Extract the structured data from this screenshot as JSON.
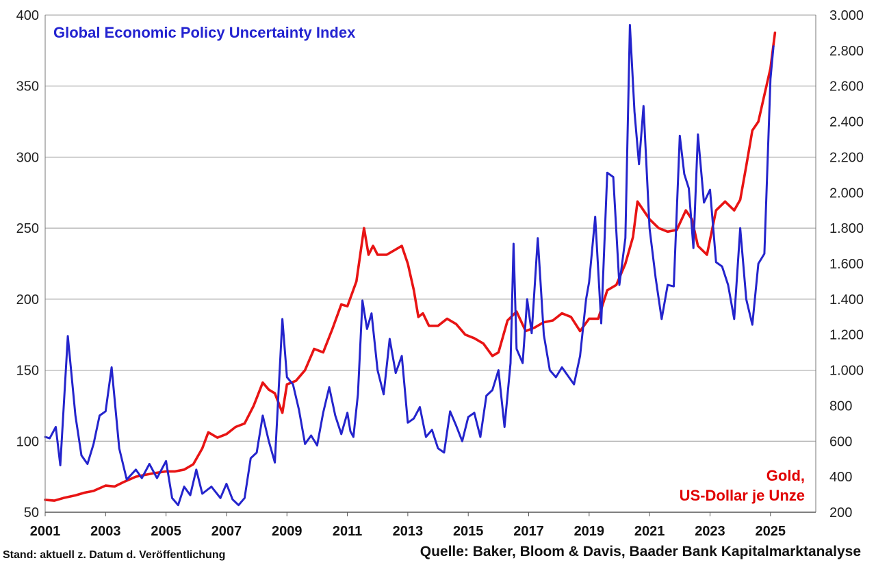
{
  "chart_data": {
    "type": "line",
    "title": "Global Economic Policy Uncertainty Index",
    "right_axis_label": "Gold,",
    "right_axis_label_2": "US-Dollar je Unze",
    "footer_left": "Stand: aktuell z. Datum d. Veröffentlichung",
    "footer_right": "Quelle: Baker, Bloom & Davis, Baader Bank Kapitalmarktanalyse",
    "x_ticks": [
      "2001",
      "2003",
      "2005",
      "2007",
      "2009",
      "2011",
      "2013",
      "2015",
      "2017",
      "2019",
      "2021",
      "2023",
      "2025"
    ],
    "xlim": [
      2001,
      2026.5
    ],
    "y_left": {
      "ticks": [
        "50",
        "100",
        "150",
        "200",
        "250",
        "300",
        "350",
        "400"
      ],
      "lim": [
        50,
        400
      ]
    },
    "y_right": {
      "ticks": [
        "200",
        "400",
        "600",
        "800",
        "1.000",
        "1.200",
        "1.400",
        "1.600",
        "1.800",
        "2.000",
        "2.200",
        "2.400",
        "2.600",
        "2.800",
        "3.000"
      ],
      "lim": [
        200,
        3000
      ]
    },
    "grid": true,
    "colors": {
      "epu": "#2424cc",
      "gold": "#e81414",
      "grid": "#9a9a9a"
    },
    "series": [
      {
        "name": "Global Economic Policy Uncertainty Index",
        "axis": "left",
        "x": [
          2001.0,
          2001.15,
          2001.35,
          2001.5,
          2001.75,
          2002.0,
          2002.2,
          2002.4,
          2002.6,
          2002.8,
          2003.0,
          2003.2,
          2003.45,
          2003.7,
          2004.0,
          2004.2,
          2004.45,
          2004.7,
          2005.0,
          2005.2,
          2005.4,
          2005.6,
          2005.8,
          2006.0,
          2006.2,
          2006.5,
          2006.8,
          2007.0,
          2007.2,
          2007.4,
          2007.6,
          2007.8,
          2008.0,
          2008.2,
          2008.4,
          2008.6,
          2008.85,
          2009.0,
          2009.2,
          2009.4,
          2009.6,
          2009.8,
          2010.0,
          2010.2,
          2010.4,
          2010.6,
          2010.8,
          2011.0,
          2011.1,
          2011.2,
          2011.35,
          2011.5,
          2011.65,
          2011.8,
          2012.0,
          2012.2,
          2012.4,
          2012.6,
          2012.8,
          2013.0,
          2013.2,
          2013.4,
          2013.6,
          2013.8,
          2014.0,
          2014.2,
          2014.4,
          2014.6,
          2014.8,
          2015.0,
          2015.2,
          2015.4,
          2015.6,
          2015.8,
          2016.0,
          2016.2,
          2016.4,
          2016.5,
          2016.6,
          2016.8,
          2016.95,
          2017.1,
          2017.3,
          2017.5,
          2017.7,
          2017.9,
          2018.1,
          2018.3,
          2018.5,
          2018.7,
          2018.9,
          2019.0,
          2019.2,
          2019.4,
          2019.6,
          2019.8,
          2020.0,
          2020.2,
          2020.35,
          2020.5,
          2020.65,
          2020.8,
          2021.0,
          2021.2,
          2021.4,
          2021.6,
          2021.8,
          2022.0,
          2022.15,
          2022.3,
          2022.45,
          2022.6,
          2022.8,
          2023.0,
          2023.2,
          2023.4,
          2023.6,
          2023.8,
          2024.0,
          2024.2,
          2024.4,
          2024.6,
          2024.8,
          2025.0,
          2025.1
        ],
        "values": [
          103,
          102,
          110,
          83,
          174,
          118,
          90,
          84,
          98,
          118,
          121,
          152,
          95,
          73,
          80,
          74,
          84,
          74,
          86,
          60,
          55,
          68,
          62,
          80,
          63,
          68,
          60,
          70,
          59,
          55,
          60,
          88,
          92,
          118,
          100,
          85,
          186,
          145,
          140,
          122,
          98,
          104,
          97,
          120,
          138,
          118,
          105,
          120,
          107,
          103,
          133,
          199,
          179,
          190,
          150,
          133,
          172,
          148,
          160,
          113,
          116,
          124,
          103,
          108,
          95,
          92,
          121,
          111,
          100,
          117,
          120,
          103,
          132,
          136,
          150,
          110,
          155,
          239,
          165,
          155,
          200,
          176,
          243,
          175,
          150,
          145,
          152,
          146,
          140,
          160,
          200,
          212,
          258,
          183,
          289,
          286,
          210,
          243,
          393,
          332,
          295,
          336,
          250,
          215,
          186,
          210,
          209,
          315,
          288,
          278,
          236,
          316,
          268,
          277,
          226,
          223,
          210,
          186,
          250,
          200,
          182,
          225,
          232,
          355,
          378
        ]
      },
      {
        "name": "Gold, US-Dollar je Unze",
        "axis": "right",
        "x": [
          2001.0,
          2001.3,
          2001.6,
          2002.0,
          2002.3,
          2002.6,
          2003.0,
          2003.3,
          2003.6,
          2004.0,
          2004.3,
          2004.6,
          2005.0,
          2005.3,
          2005.6,
          2005.9,
          2006.2,
          2006.4,
          2006.7,
          2007.0,
          2007.3,
          2007.6,
          2007.9,
          2008.2,
          2008.4,
          2008.6,
          2008.85,
          2009.0,
          2009.3,
          2009.6,
          2009.9,
          2010.2,
          2010.5,
          2010.8,
          2011.0,
          2011.3,
          2011.55,
          2011.7,
          2011.85,
          2012.0,
          2012.3,
          2012.6,
          2012.8,
          2013.0,
          2013.2,
          2013.35,
          2013.5,
          2013.7,
          2014.0,
          2014.3,
          2014.6,
          2014.9,
          2015.2,
          2015.5,
          2015.8,
          2016.0,
          2016.3,
          2016.6,
          2016.9,
          2017.2,
          2017.5,
          2017.8,
          2018.1,
          2018.4,
          2018.7,
          2019.0,
          2019.3,
          2019.6,
          2019.9,
          2020.2,
          2020.45,
          2020.6,
          2020.8,
          2021.0,
          2021.3,
          2021.6,
          2021.9,
          2022.2,
          2022.4,
          2022.6,
          2022.9,
          2023.2,
          2023.5,
          2023.8,
          2024.0,
          2024.2,
          2024.4,
          2024.6,
          2024.8,
          2025.0,
          2025.15
        ],
        "values": [
          270,
          265,
          280,
          295,
          310,
          320,
          350,
          345,
          370,
          400,
          410,
          420,
          430,
          430,
          440,
          470,
          560,
          650,
          620,
          640,
          680,
          700,
          800,
          930,
          890,
          870,
          760,
          920,
          940,
          1000,
          1120,
          1100,
          1230,
          1370,
          1360,
          1500,
          1800,
          1650,
          1700,
          1650,
          1650,
          1680,
          1700,
          1600,
          1450,
          1300,
          1320,
          1250,
          1250,
          1290,
          1260,
          1200,
          1180,
          1150,
          1080,
          1100,
          1280,
          1330,
          1220,
          1240,
          1270,
          1280,
          1320,
          1300,
          1220,
          1290,
          1290,
          1450,
          1480,
          1600,
          1750,
          1950,
          1900,
          1850,
          1800,
          1780,
          1790,
          1900,
          1850,
          1700,
          1650,
          1900,
          1950,
          1900,
          1960,
          2150,
          2350,
          2400,
          2550,
          2700,
          2900
        ]
      }
    ]
  }
}
